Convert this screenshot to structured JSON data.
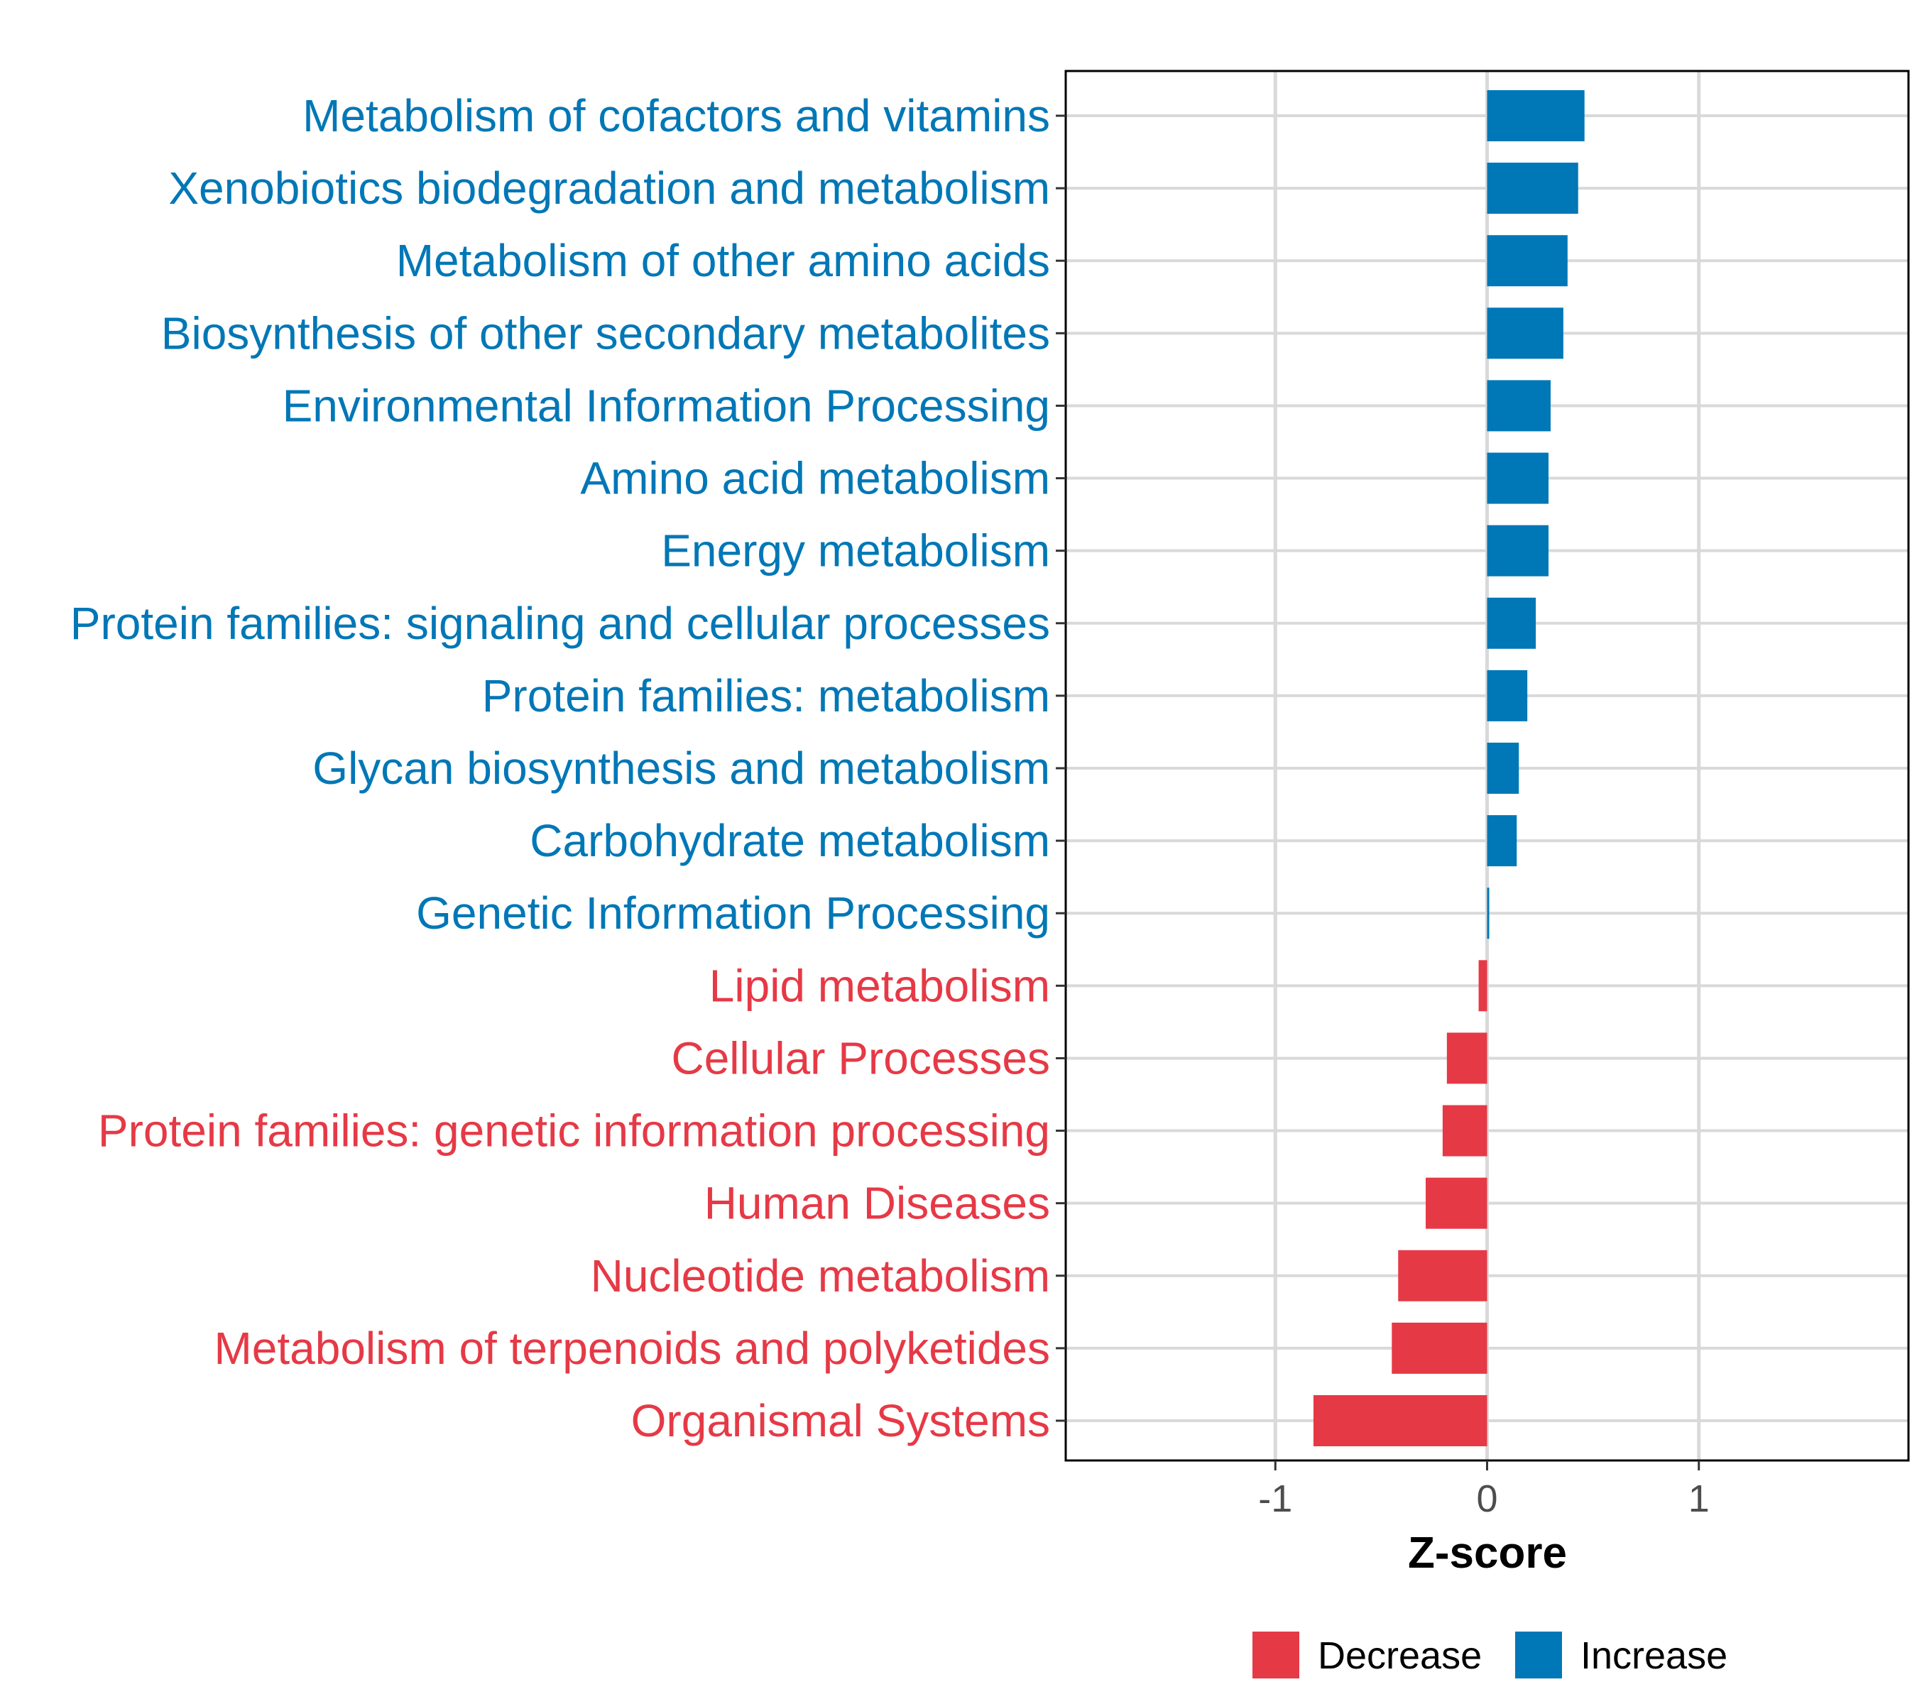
{
  "chart_data": {
    "type": "bar",
    "orientation": "horizontal",
    "title": "",
    "xlabel": "Z-score",
    "ylabel": "",
    "xlim": [
      -1.99,
      1.99
    ],
    "xticks": [
      -1,
      0,
      1
    ],
    "xtick_labels": [
      "-1",
      "0",
      "1"
    ],
    "grid": true,
    "legend_position": "bottom",
    "categories": [
      "Metabolism of cofactors and vitamins",
      "Xenobiotics biodegradation and metabolism",
      "Metabolism of other amino acids",
      "Biosynthesis of other secondary metabolites",
      "Environmental Information Processing",
      "Amino acid metabolism",
      "Energy metabolism",
      "Protein families: signaling and cellular processes",
      "Protein families: metabolism",
      "Glycan biosynthesis and metabolism",
      "Carbohydrate metabolism",
      "Genetic Information Processing",
      "Lipid metabolism",
      "Cellular Processes",
      "Protein families: genetic information processing",
      "Human Diseases",
      "Nucleotide metabolism",
      "Metabolism of terpenoids and polyketides",
      "Organismal Systems"
    ],
    "values": [
      0.46,
      0.43,
      0.38,
      0.36,
      0.3,
      0.29,
      0.29,
      0.23,
      0.19,
      0.15,
      0.14,
      0.01,
      -0.04,
      -0.19,
      -0.21,
      -0.29,
      -0.42,
      -0.45,
      -0.82
    ],
    "legend": [
      {
        "label": "Decrease",
        "color": "#E63946"
      },
      {
        "label": "Increase",
        "color": "#0077B6"
      }
    ]
  }
}
